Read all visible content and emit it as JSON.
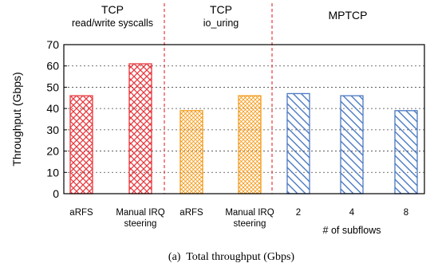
{
  "chart_data": {
    "type": "bar",
    "caption": "(a)  Total throughput (Gbps)",
    "ylabel": "Throughput (Gbps)",
    "xlabel": "# of subflows",
    "ylim": [
      0,
      70
    ],
    "yticks": [
      0,
      10,
      20,
      30,
      40,
      50,
      60,
      70
    ],
    "grid": "horizontal dashed",
    "groups": [
      {
        "title": "TCP",
        "subtitle": "read/write syscalls",
        "color": "#e8383d",
        "pattern": "crosshatch"
      },
      {
        "title": "TCP",
        "subtitle": "io_uring",
        "color": "#f39c1e",
        "pattern": "crosshatch-fine"
      },
      {
        "title": "MPTCP",
        "subtitle": "",
        "color": "#4a78c2",
        "pattern": "diagonal"
      }
    ],
    "bars": [
      {
        "label": "aRFS",
        "value": 46,
        "group": 0
      },
      {
        "label": "Manual IRQ steering",
        "label_lines": [
          "Manual IRQ",
          "steering"
        ],
        "value": 61,
        "group": 0
      },
      {
        "label": "aRFS",
        "value": 39,
        "group": 1
      },
      {
        "label": "Manual IRQ steering",
        "label_lines": [
          "Manual IRQ",
          "steering"
        ],
        "value": 46,
        "group": 1
      },
      {
        "label": "2",
        "value": 47,
        "group": 2
      },
      {
        "label": "4",
        "value": 46,
        "group": 2
      },
      {
        "label": "8",
        "value": 39,
        "group": 2
      }
    ]
  }
}
